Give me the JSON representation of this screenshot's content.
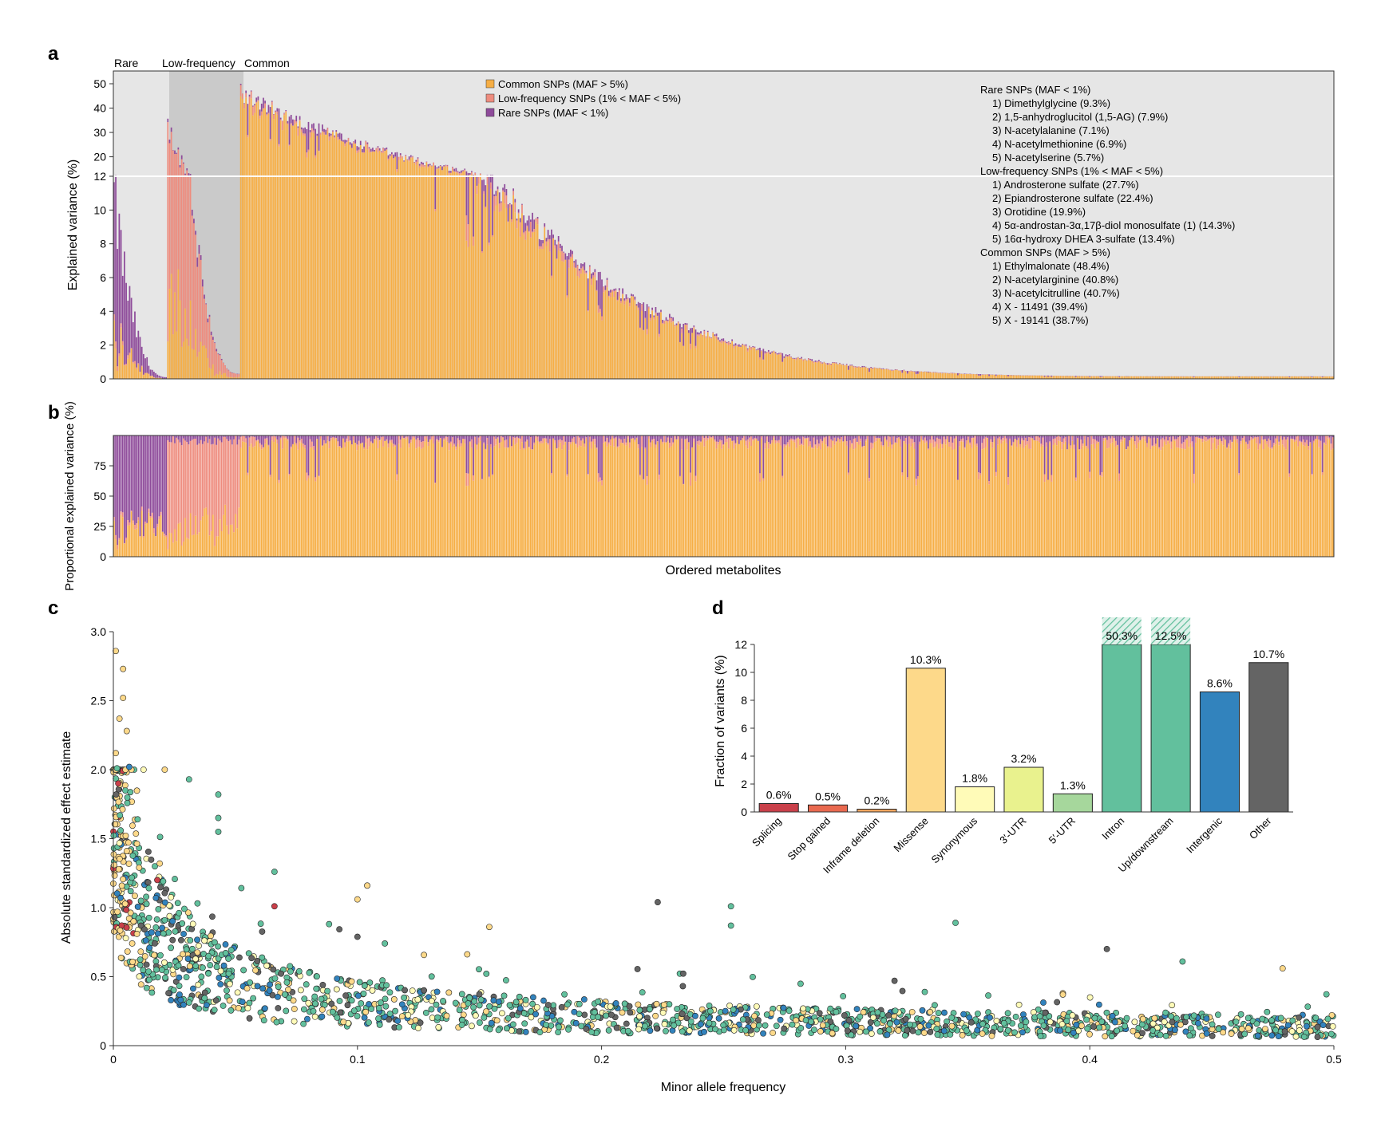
{
  "panel_labels": {
    "a": "a",
    "b": "b",
    "c": "c",
    "d": "d"
  },
  "colors": {
    "common": "#F6AE45",
    "lowfreq": "#EE8C7E",
    "rare": "#8E4B9A",
    "rare_region_bg": "#E6E6E6",
    "low_region_bg": "#CACACA",
    "common_region_bg": "#E6E6E6"
  },
  "chart_data": [
    {
      "panel": "a",
      "type": "bar",
      "stacked": true,
      "region_labels": [
        "Rare",
        "Low-frequency",
        "Common"
      ],
      "ylabel": "Explained variance (%)",
      "y_tick_labels": [
        "0",
        "2",
        "4",
        "6",
        "8",
        "10",
        "12",
        "20",
        "30",
        "40",
        "50"
      ],
      "y_scale": "broken: linear 0–12, compressed 12–50",
      "legend": [
        "Common SNPs (MAF > 5%)",
        "Low-frequency SNPs (1% < MAF < 5%)",
        "Rare SNPs (MAF < 1%)"
      ],
      "legend_position": "top-center",
      "annotation": [
        "Rare SNPs (MAF < 1%)",
        "1) Dimethylglycine (9.3%)",
        "2) 1,5-anhydroglucitol (1,5-AG) (7.9%)",
        "3) N-acetylalanine (7.1%)",
        "4) N-acetylmethionine (6.9%)",
        "5) N-acetylserine (5.7%)",
        "Low-frequency SNPs (1% < MAF < 5%)",
        "1) Androsterone sulfate (27.7%)",
        "2) Epiandrosterone sulfate (22.4%)",
        "3) Orotidine (19.9%)",
        "4) 5α-androstan-3α,17β-diol monosulfate (1) (14.3%)",
        "5) 16α-hydroxy DHEA 3-sulfate (13.4%)",
        "Common SNPs (MAF > 5%)",
        "1) Ethylmalonate (48.4%)",
        "2) N-acetylarginine (40.8%)",
        "3) N-acetylcitrulline (40.7%)",
        "4) X - 11491 (39.4%)",
        "5) X - 19141 (38.7%)"
      ],
      "series": [
        {
          "name": "Rare SNPs (MAF < 1%)",
          "region": "Rare",
          "count": 31,
          "max": 13.5,
          "min": 0.1
        },
        {
          "name": "Low-frequency SNPs (1% < MAF < 5%)",
          "region": "Low-frequency",
          "count": 42,
          "max": 38,
          "min": 0.3
        },
        {
          "name": "Common SNPs (MAF > 5%)",
          "region": "Common",
          "count": 630,
          "max": 50,
          "min": 0.15
        }
      ]
    },
    {
      "panel": "b",
      "type": "bar",
      "stacked": true,
      "ylabel": "Proportional explained variance (%)",
      "y_tick_labels": [
        "0",
        "25",
        "50",
        "75"
      ],
      "xlabel": "Ordered metabolites",
      "ylim": [
        0,
        100
      ]
    },
    {
      "panel": "c",
      "type": "scatter",
      "xlabel": "Minor allele frequency",
      "ylabel": "Absolute standardized effect estimate",
      "xlim": [
        0,
        0.5
      ],
      "ylim": [
        0,
        3.0
      ],
      "x_tick_labels": [
        "0",
        "0.1",
        "0.2",
        "0.3",
        "0.4",
        "0.5"
      ],
      "y_tick_labels": [
        "0",
        "0.5",
        "1.0",
        "1.5",
        "2.0",
        "2.5",
        "3.0"
      ],
      "notable_points": [
        {
          "x": 0.001,
          "y": 2.86,
          "category": "Missense"
        },
        {
          "x": 0.004,
          "y": 2.73,
          "category": "Missense"
        },
        {
          "x": 0.004,
          "y": 2.52,
          "category": "Missense"
        },
        {
          "x": 0.0025,
          "y": 2.37,
          "category": "Missense"
        },
        {
          "x": 0.0055,
          "y": 2.28,
          "category": "Missense"
        },
        {
          "x": 0.001,
          "y": 2.12,
          "category": "Missense"
        },
        {
          "x": 0.0065,
          "y": 2.02,
          "category": "Intergenic"
        },
        {
          "x": 0.0015,
          "y": 2.01,
          "category": "Intron"
        },
        {
          "x": 0.002,
          "y": 1.9,
          "category": "Splicing"
        },
        {
          "x": 0.031,
          "y": 1.93,
          "category": "Intron"
        },
        {
          "x": 0.043,
          "y": 1.82,
          "category": "Intron"
        },
        {
          "x": 0.043,
          "y": 1.65,
          "category": "Intron"
        },
        {
          "x": 0.043,
          "y": 1.55,
          "category": "Intron"
        },
        {
          "x": 0.017,
          "y": 1.3,
          "category": "Intron"
        },
        {
          "x": 0.019,
          "y": 1.32,
          "category": "Missense"
        },
        {
          "x": 0.018,
          "y": 1.2,
          "category": "Splicing"
        },
        {
          "x": 0.066,
          "y": 1.26,
          "category": "Intron"
        },
        {
          "x": 0.066,
          "y": 1.01,
          "category": "Splicing"
        },
        {
          "x": 0.104,
          "y": 1.16,
          "category": "Missense"
        },
        {
          "x": 0.1,
          "y": 1.06,
          "category": "Missense"
        },
        {
          "x": 0.154,
          "y": 0.86,
          "category": "Missense"
        },
        {
          "x": 0.223,
          "y": 1.04,
          "category": "Other"
        },
        {
          "x": 0.253,
          "y": 1.01,
          "category": "Intron"
        },
        {
          "x": 0.253,
          "y": 0.87,
          "category": "Intron"
        },
        {
          "x": 0.345,
          "y": 0.89,
          "category": "Intron"
        },
        {
          "x": 0.407,
          "y": 0.7,
          "category": "Other"
        },
        {
          "x": 0.438,
          "y": 0.61,
          "category": "Intron"
        },
        {
          "x": 0.479,
          "y": 0.56,
          "category": "Missense"
        }
      ]
    },
    {
      "panel": "d",
      "type": "bar",
      "ylabel": "Fraction of variants (%)",
      "ylim": [
        0,
        12
      ],
      "y_tick_labels": [
        "0",
        "2",
        "4",
        "6",
        "8",
        "10",
        "12"
      ],
      "categories": [
        "Splicing",
        "Stop gained",
        "Inframe deletion",
        "Missense",
        "Synonymous",
        "3′-UTR",
        "5′-UTR",
        "Intron",
        "Up/downstream",
        "Intergenic",
        "Other"
      ],
      "values": [
        0.6,
        0.5,
        0.2,
        10.3,
        1.8,
        3.2,
        1.3,
        50.3,
        12.5,
        8.6,
        10.7
      ],
      "value_labels": [
        "0.6%",
        "0.5%",
        "0.2%",
        "10.3%",
        "1.8%",
        "3.2%",
        "1.3%",
        "50.3%",
        "12.5%",
        "8.6%",
        "10.7%"
      ],
      "colors": [
        "#C9404A",
        "#E9694F",
        "#F2A55E",
        "#FDD98A",
        "#FFFBB8",
        "#E9F28E",
        "#A6D79C",
        "#62C09D",
        "#62C09D",
        "#3283BD",
        "#646464"
      ]
    }
  ]
}
